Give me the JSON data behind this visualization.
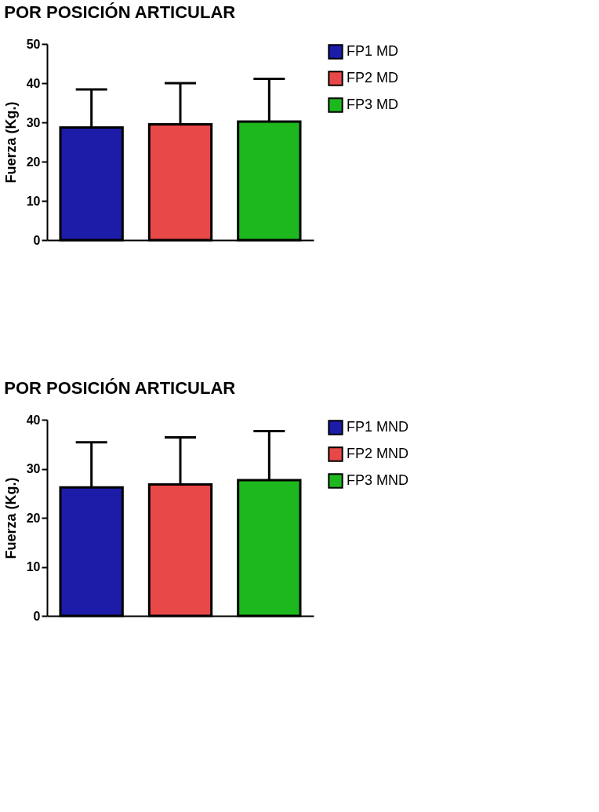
{
  "chart_data": [
    {
      "type": "bar",
      "title": "POR POSICIÓN ARTICULAR",
      "ylabel": "Fuerza (Kg.)",
      "categories": [
        null,
        null,
        null
      ],
      "series": [
        {
          "name": "FP1 MD",
          "color": "#1c1ca8",
          "values": [
            28.7,
            null,
            null
          ],
          "errors": [
            [
              28.7,
              38.4
            ],
            null,
            null
          ]
        },
        {
          "name": "FP2 MD",
          "color": "#e84848",
          "values": [
            null,
            29.5,
            null
          ],
          "errors": [
            null,
            [
              29.5,
              40.0
            ],
            null
          ]
        },
        {
          "name": "FP3 MD",
          "color": "#1db81d",
          "values": [
            null,
            null,
            30.2
          ],
          "errors": [
            null,
            null,
            [
              30.2,
              41.1
            ]
          ]
        }
      ],
      "ylim": [
        0,
        50
      ],
      "yticks": [
        0,
        10,
        20,
        30,
        40,
        50
      ],
      "grid": false,
      "legend": "top right",
      "tick_labels": "y"
    },
    {
      "type": "bar",
      "title": "POR POSICIÓN ARTICULAR",
      "ylabel": "Fuerza (Kg.)",
      "categories": [
        null,
        null,
        null
      ],
      "series": [
        {
          "name": "FP1 MND",
          "color": "#1c1ca8",
          "values": [
            26.2,
            null,
            null
          ],
          "errors": [
            [
              26.2,
              35.4
            ],
            null,
            null
          ]
        },
        {
          "name": "FP2 MND",
          "color": "#e84848",
          "values": [
            null,
            26.8,
            null
          ],
          "errors": [
            null,
            [
              26.8,
              36.4
            ],
            null
          ]
        },
        {
          "name": "FP3 MND",
          "color": "#1db81d",
          "values": [
            null,
            null,
            27.7
          ],
          "errors": [
            null,
            null,
            [
              27.7,
              37.7
            ]
          ]
        }
      ],
      "ylim": [
        0,
        40
      ],
      "yticks": [
        0,
        10,
        20,
        30,
        40
      ],
      "grid": false,
      "legend": "top right",
      "tick_labels": "y"
    }
  ]
}
